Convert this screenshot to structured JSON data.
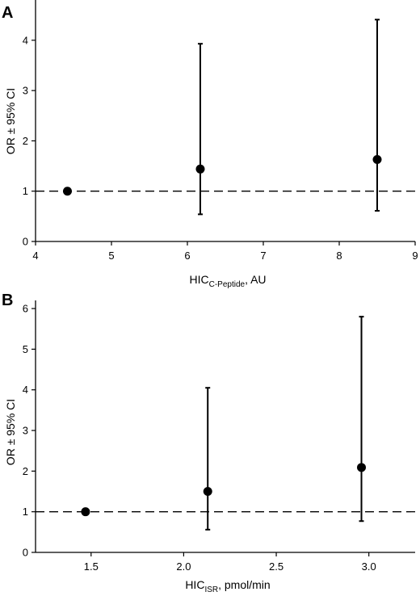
{
  "chart_data": [
    {
      "panel": "A",
      "type": "scatter",
      "title": "",
      "xlabel": {
        "main": "HIC",
        "sub": "C-Peptide",
        "suffix": ", AU"
      },
      "ylabel": "OR ± 95% CI",
      "xlim": [
        4,
        9
      ],
      "ylim": [
        0,
        4.8
      ],
      "xticks": [
        "4",
        "5",
        "6",
        "7",
        "8",
        "9"
      ],
      "yticks": [
        "0",
        "1",
        "2",
        "3",
        "4"
      ],
      "reference_line": 1,
      "points": [
        {
          "x": 4.42,
          "y": 1.0
        },
        {
          "x": 6.17,
          "y": 1.44,
          "lower": 0.54,
          "upper": 3.93
        },
        {
          "x": 8.5,
          "y": 1.63,
          "lower": 0.61,
          "upper": 4.41
        }
      ]
    },
    {
      "panel": "B",
      "type": "scatter",
      "title": "",
      "xlabel": {
        "main": "HIC",
        "sub": "ISR",
        "suffix": ", pmol/min"
      },
      "ylabel": "OR ± 95% CI",
      "xlim": [
        1.2,
        3.25
      ],
      "ylim": [
        0,
        6.2
      ],
      "xticks": [
        "1.5",
        "2.0",
        "2.5",
        "3.0"
      ],
      "yticks": [
        "0",
        "1",
        "2",
        "3",
        "4",
        "5",
        "6"
      ],
      "reference_line": 1,
      "points": [
        {
          "x": 1.47,
          "y": 1.0
        },
        {
          "x": 2.13,
          "y": 1.5,
          "lower": 0.56,
          "upper": 4.05
        },
        {
          "x": 2.96,
          "y": 2.09,
          "lower": 0.77,
          "upper": 5.8
        }
      ]
    }
  ]
}
